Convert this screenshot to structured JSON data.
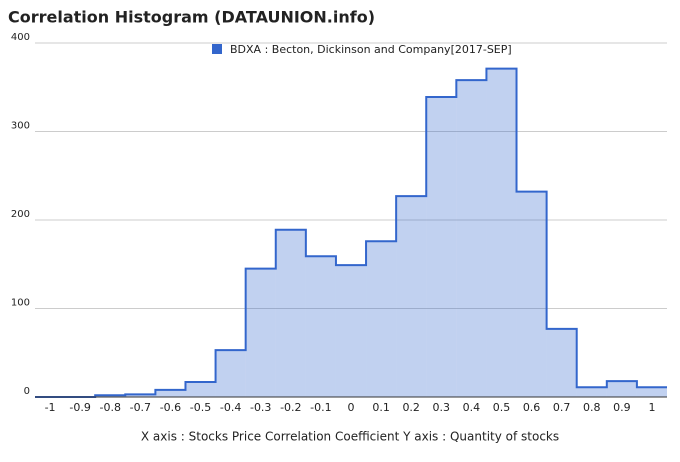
{
  "chart_data": {
    "type": "step-area",
    "title": "Correlation Histogram (DATAUNION.info)",
    "x_axis_caption": "X axis : Stocks Price Correlation Coefficient  Y axis : Quantity of stocks",
    "x": [
      -1,
      -0.9,
      -0.8,
      -0.7,
      -0.6,
      -0.5,
      -0.4,
      -0.3,
      -0.2,
      -0.1,
      0,
      0.1,
      0.2,
      0.3,
      0.4,
      0.5,
      0.6,
      0.7,
      0.8,
      0.9,
      1
    ],
    "series": [
      {
        "name": "BDXA : Becton, Dickinson and Company[2017-SEP]",
        "color": "#3366cc",
        "values": [
          0,
          0,
          2,
          3,
          8,
          17,
          53,
          145,
          189,
          159,
          149,
          176,
          227,
          339,
          358,
          371,
          232,
          77,
          11,
          18,
          11
        ]
      }
    ],
    "xlim": [
      -1.05,
      1.05
    ],
    "xticks": [
      -1,
      -0.9,
      -0.8,
      -0.7,
      -0.6,
      -0.5,
      -0.4,
      -0.3,
      -0.2,
      -0.1,
      0,
      0.1,
      0.2,
      0.3,
      0.4,
      0.5,
      0.6,
      0.7,
      0.8,
      0.9,
      1
    ],
    "ylim": [
      0,
      400
    ],
    "yticks": [
      0,
      100,
      200,
      300,
      400
    ],
    "grid": true,
    "legend": "top"
  }
}
